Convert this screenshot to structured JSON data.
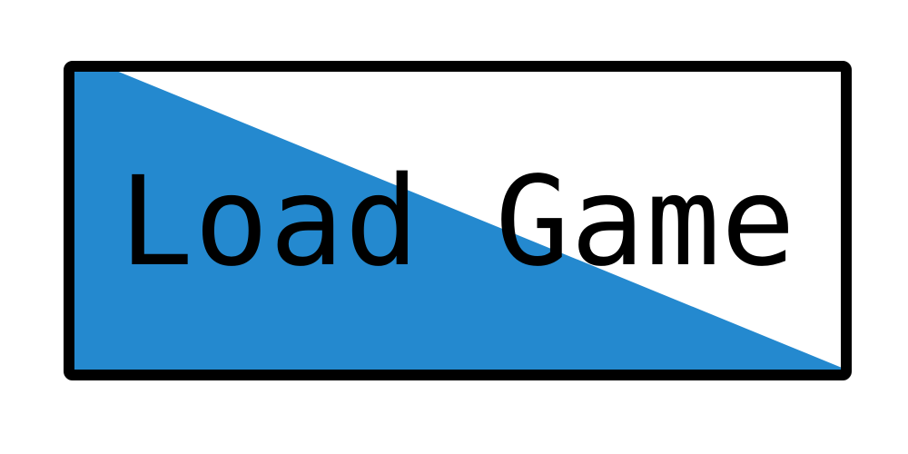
{
  "button": {
    "label": "Load Game",
    "fill_color": "#2489CF",
    "background_color": "#FFFFFF",
    "border_color": "#000000"
  }
}
